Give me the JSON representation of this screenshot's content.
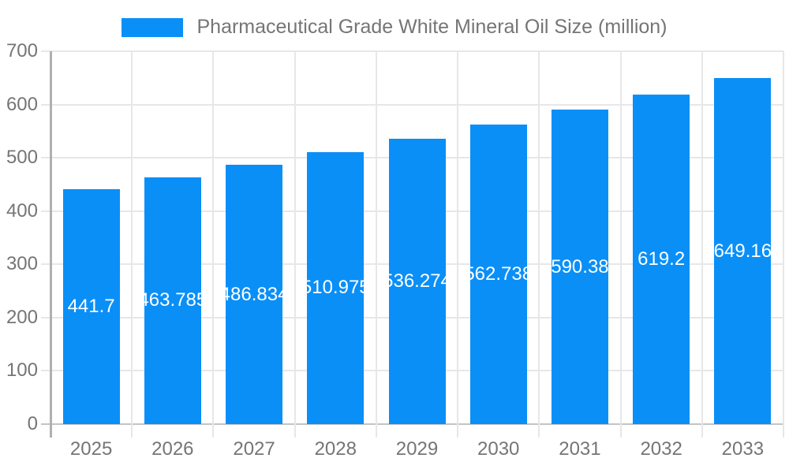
{
  "legend": {
    "label": "Pharmaceutical Grade White Mineral Oil Size (million)",
    "swatch_color": "#0a8ff7"
  },
  "chart_data": {
    "type": "bar",
    "title": "Pharmaceutical Grade White Mineral Oil Size (million)",
    "categories": [
      "2025",
      "2026",
      "2027",
      "2028",
      "2029",
      "2030",
      "2031",
      "2032",
      "2033"
    ],
    "values": [
      441.7,
      463.785,
      486.834,
      510.975,
      536.274,
      562.738,
      590.38,
      619.2,
      649.16
    ],
    "bar_labels": [
      "441.7",
      "463.785",
      "486.834",
      "510.975",
      "536.274",
      "562.738",
      "590.38",
      "619.2",
      "649.16"
    ],
    "xlabel": "",
    "ylabel": "",
    "ylim": [
      0,
      700
    ],
    "yticks": [
      0,
      100,
      200,
      300,
      400,
      500,
      600,
      700
    ],
    "grid": true,
    "legend_position": "top",
    "bar_color": "#0a8ff7",
    "label_color": "#ffffff"
  },
  "colors": {
    "bar": "#0a8ff7",
    "axis_text": "#757575",
    "gridline": "#e7e7e7",
    "axis_line": "#b0b0b0",
    "zero_line": "#c4c4c4",
    "background": "#ffffff"
  }
}
